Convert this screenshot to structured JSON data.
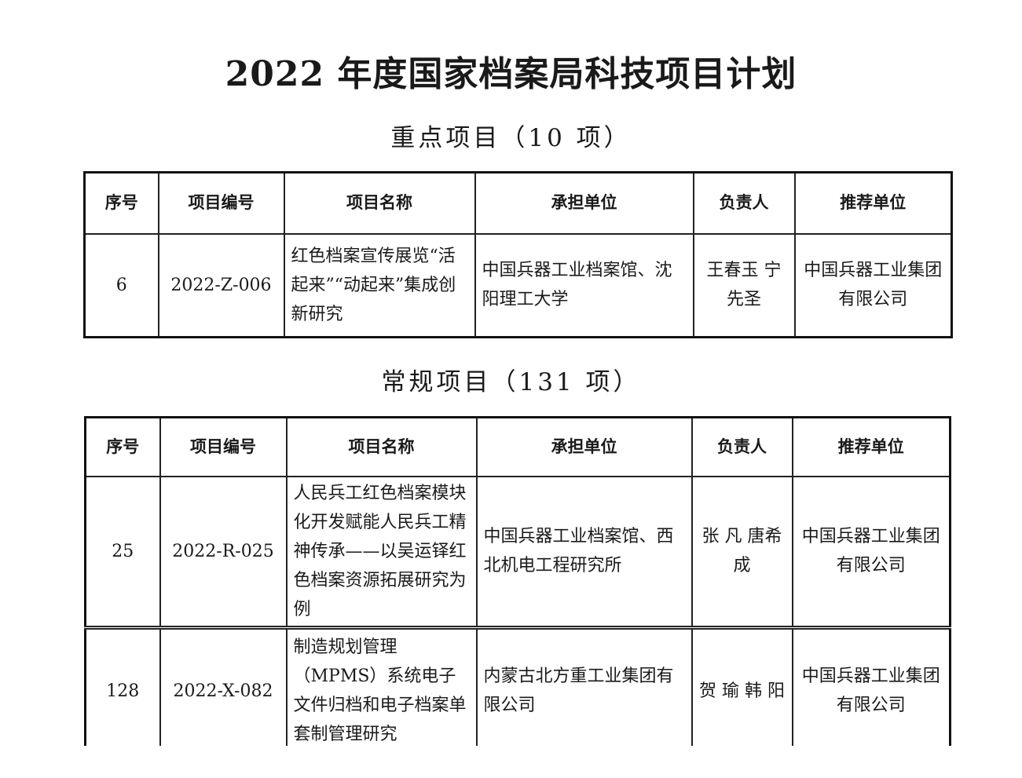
{
  "title": "2022 年度国家档案局科技项目计划",
  "columns": [
    "序号",
    "项目编号",
    "项目名称",
    "承担单位",
    "负责人",
    "推荐单位"
  ],
  "key_section": {
    "heading": "重点项目（10 项）",
    "rows": [
      {
        "no": "6",
        "code": "2022-Z-006",
        "name": "红色档案宣传展览“活起来”“动起来”集成创新研究",
        "unit": "中国兵器工业档案馆、沈阳理工大学",
        "leader": "王春玉 宁先圣",
        "recommender": "中国兵器工业集团有限公司"
      }
    ]
  },
  "regular_section": {
    "heading": "常规项目（131 项）",
    "rows": [
      {
        "no": "25",
        "code": "2022-R-025",
        "name": "人民兵工红色档案模块化开发赋能人民兵工精神传承——以吴运铎红色档案资源拓展研究为例",
        "unit": "中国兵器工业档案馆、西北机电工程研究所",
        "leader": "张 凡 唐希成",
        "recommender": "中国兵器工业集团有限公司"
      },
      {
        "no": "128",
        "code": "2022-X-082",
        "name": "制造规划管理（MPMS）系统电子文件归档和电子档案单套制管理研究",
        "unit": "内蒙古北方重工业集团有限公司",
        "leader": "贺 瑜 韩 阳",
        "recommender": "中国兵器工业集团有限公司"
      }
    ]
  }
}
